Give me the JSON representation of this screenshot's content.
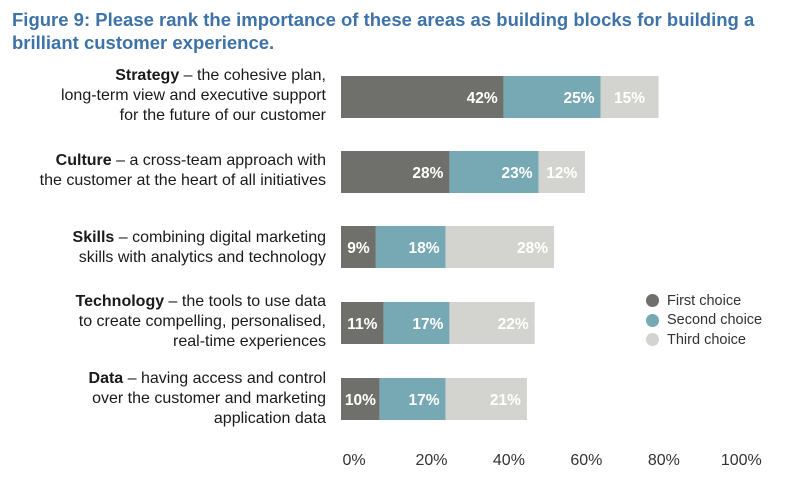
{
  "title": "Figure 9: Please rank the importance of these areas as building blocks for building a brilliant customer experience.",
  "chart_data": {
    "type": "bar",
    "orientation": "horizontal",
    "stacked": true,
    "categories": [
      {
        "name": "Strategy",
        "description": "– the cohesive plan, long-term view and executive support for the future of our customer",
        "lines": [
          "– the cohesive plan,",
          "long-term view and executive support",
          "for the future of our customer"
        ]
      },
      {
        "name": "Culture",
        "description": "– a cross-team approach with the customer at the heart of all initiatives",
        "lines": [
          "– a cross-team approach with",
          "the customer at the heart of all initiatives"
        ]
      },
      {
        "name": "Skills",
        "description": "– combining digital marketing skills with analytics and technology",
        "lines": [
          "– combining digital marketing",
          "skills with analytics and technology"
        ]
      },
      {
        "name": "Technology",
        "description": "– the tools to use data to create compelling, personalised, real-time experiences",
        "lines": [
          "– the tools to use data",
          "to create compelling, personalised,",
          "real-time experiences"
        ]
      },
      {
        "name": "Data",
        "description": "– having access and control over the customer and marketing application data",
        "lines": [
          "– having access and control",
          "over the customer and marketing",
          "application data"
        ]
      }
    ],
    "series": [
      {
        "name": "First choice",
        "color": "#6f706b",
        "values": [
          42,
          28,
          9,
          11,
          10
        ]
      },
      {
        "name": "Second choice",
        "color": "#77a9b5",
        "values": [
          25,
          23,
          18,
          17,
          17
        ]
      },
      {
        "name": "Third choice",
        "color": "#d3d4cf",
        "values": [
          15,
          12,
          28,
          22,
          21
        ]
      }
    ],
    "xlim": [
      0,
      100
    ],
    "xticks": [
      "0%",
      "20%",
      "40%",
      "60%",
      "80%",
      "100%"
    ],
    "value_suffix": "%",
    "grid": false,
    "legend_position": "right"
  }
}
